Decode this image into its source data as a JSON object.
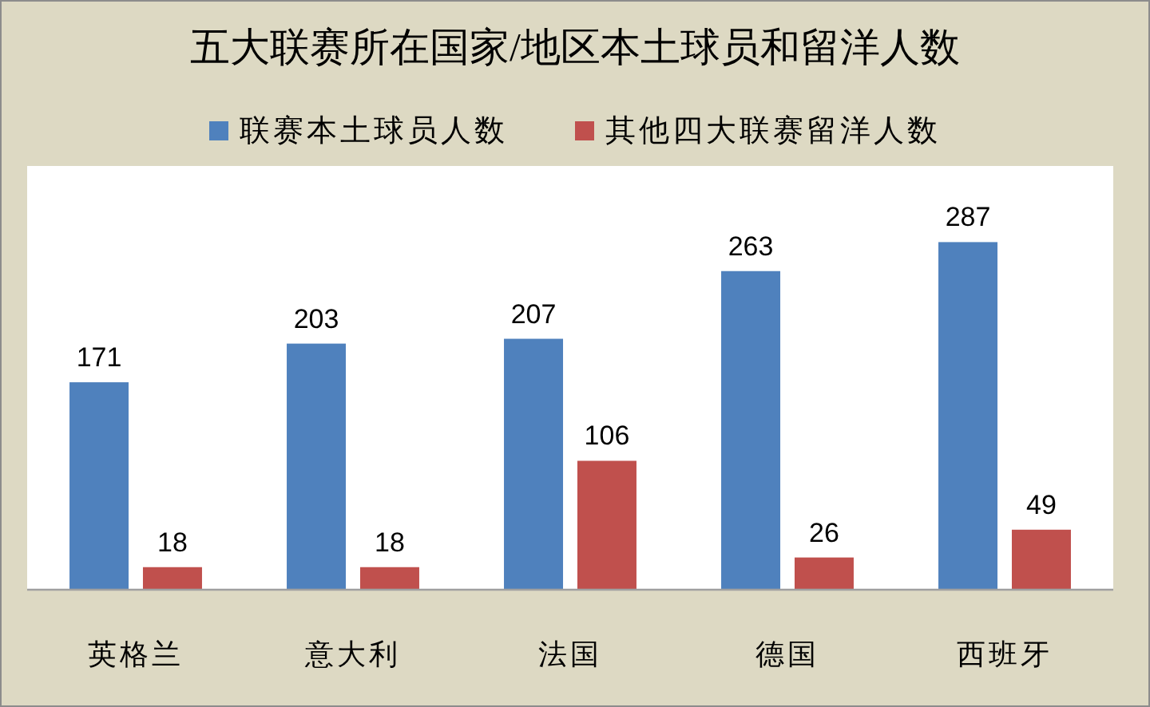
{
  "chart_data": {
    "type": "bar",
    "title": "五大联赛所在国家/地区本土球员和留洋人数",
    "categories": [
      "英格兰",
      "意大利",
      "法国",
      "德国",
      "西班牙"
    ],
    "series": [
      {
        "name": "联赛本土球员人数",
        "color": "#4f81bd",
        "values": [
          171,
          203,
          207,
          263,
          287
        ]
      },
      {
        "name": "其他四大联赛留洋人数",
        "color": "#c0504d",
        "values": [
          18,
          18,
          106,
          26,
          49
        ]
      }
    ],
    "ylim": [
      0,
      350
    ],
    "data_labels": true,
    "legend": "top"
  }
}
